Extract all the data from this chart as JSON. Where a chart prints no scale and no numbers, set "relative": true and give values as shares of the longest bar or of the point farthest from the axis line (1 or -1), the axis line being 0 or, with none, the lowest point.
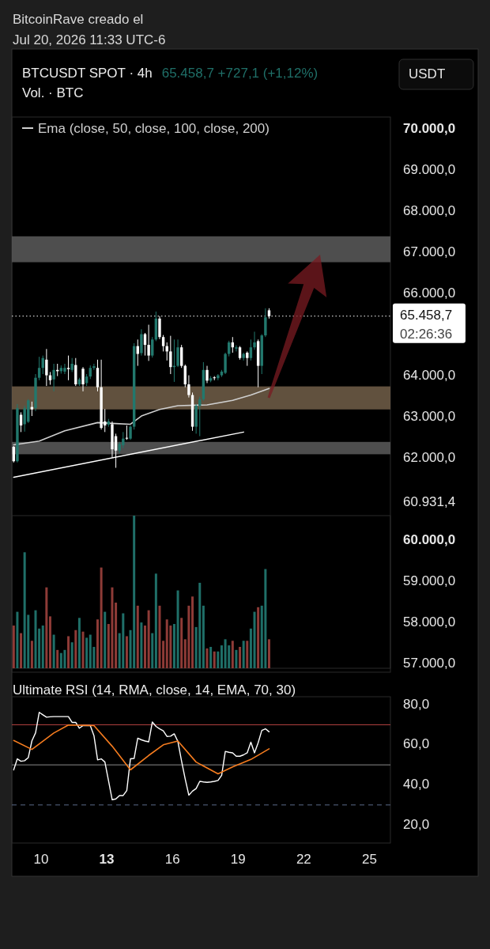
{
  "chart_data": [
    {
      "type": "candlestick",
      "title": "BTCUSDT SPOT · 4h",
      "annotations": [
        "BitcoinRave creado el",
        "Jul 20, 2026 11:33 UTC-6",
        "65.458,7  +727,1 (+1,12%)",
        "USDT",
        "02:26:36"
      ],
      "x": [
        "2026-07-08T18:00",
        "2026-07-08T22:00",
        "2026-07-09T02:00",
        "2026-07-09T06:00",
        "2026-07-09T10:00",
        "2026-07-09T14:00",
        "2026-07-09T18:00",
        "2026-07-09T22:00",
        "2026-07-10T02:00",
        "2026-07-10T06:00",
        "2026-07-10T10:00",
        "2026-07-10T14:00",
        "2026-07-10T18:00",
        "2026-07-10T22:00",
        "2026-07-11T02:00",
        "2026-07-11T06:00",
        "2026-07-11T10:00",
        "2026-07-11T14:00",
        "2026-07-11T18:00",
        "2026-07-11T22:00",
        "2026-07-12T02:00",
        "2026-07-12T06:00",
        "2026-07-12T10:00",
        "2026-07-12T14:00",
        "2026-07-12T18:00",
        "2026-07-12T22:00",
        "2026-07-13T02:00",
        "2026-07-13T06:00",
        "2026-07-13T10:00",
        "2026-07-13T14:00",
        "2026-07-13T18:00",
        "2026-07-13T22:00",
        "2026-07-14T02:00",
        "2026-07-14T06:00",
        "2026-07-14T10:00",
        "2026-07-14T14:00",
        "2026-07-14T18:00",
        "2026-07-14T22:00",
        "2026-07-15T02:00",
        "2026-07-15T06:00",
        "2026-07-15T10:00",
        "2026-07-15T14:00",
        "2026-07-15T18:00",
        "2026-07-15T22:00",
        "2026-07-16T02:00",
        "2026-07-16T06:00",
        "2026-07-16T10:00",
        "2026-07-16T14:00",
        "2026-07-16T18:00",
        "2026-07-16T22:00",
        "2026-07-17T02:00",
        "2026-07-17T06:00",
        "2026-07-17T10:00",
        "2026-07-17T14:00",
        "2026-07-17T18:00",
        "2026-07-17T22:00",
        "2026-07-18T02:00",
        "2026-07-18T06:00",
        "2026-07-18T10:00",
        "2026-07-18T14:00",
        "2026-07-18T18:00",
        "2026-07-18T22:00",
        "2026-07-19T02:00",
        "2026-07-19T06:00",
        "2026-07-19T10:00",
        "2026-07-19T14:00",
        "2026-07-19T18:00",
        "2026-07-19T22:00",
        "2026-07-20T02:00",
        "2026-07-20T06:00",
        "2026-07-20T10:00"
      ],
      "ohlc": [
        [
          62280,
          62300,
          61900,
          61930
        ],
        [
          61930,
          63320,
          61900,
          63220
        ],
        [
          63060,
          63120,
          62640,
          62800
        ],
        [
          62830,
          63280,
          62650,
          63220
        ],
        [
          62890,
          63440,
          62860,
          63410
        ],
        [
          63250,
          63380,
          63030,
          63190
        ],
        [
          63220,
          64050,
          63150,
          63960
        ],
        [
          63960,
          64470,
          63900,
          64200
        ],
        [
          64200,
          64500,
          64050,
          64440
        ],
        [
          64400,
          64660,
          63760,
          64020
        ],
        [
          64020,
          64100,
          63790,
          63900
        ],
        [
          63920,
          64300,
          63630,
          64150
        ],
        [
          64150,
          64300,
          64000,
          64120
        ],
        [
          64120,
          64260,
          64060,
          64200
        ],
        [
          64110,
          64300,
          64050,
          64200
        ],
        [
          64200,
          64500,
          63900,
          64170
        ],
        [
          64150,
          64440,
          64100,
          64300
        ],
        [
          64270,
          64440,
          63760,
          63800
        ],
        [
          63800,
          63960,
          63760,
          63920
        ],
        [
          64180,
          64220,
          63630,
          63800
        ],
        [
          63830,
          64050,
          63760,
          63990
        ],
        [
          63990,
          64260,
          63930,
          64200
        ],
        [
          64200,
          64300,
          64150,
          64240
        ],
        [
          64200,
          64400,
          63630,
          63730
        ],
        [
          63730,
          64400,
          62700,
          62740
        ],
        [
          62900,
          63200,
          62640,
          62800
        ],
        [
          62820,
          62960,
          62770,
          62900
        ],
        [
          62830,
          62900,
          62020,
          62220
        ],
        [
          62540,
          62600,
          61770,
          62190
        ],
        [
          62190,
          62400,
          62130,
          62350
        ],
        [
          62320,
          62640,
          62250,
          62480
        ],
        [
          62500,
          62800,
          62450,
          62480
        ],
        [
          62480,
          62800,
          62450,
          62770
        ],
        [
          62770,
          64800,
          62700,
          64730
        ],
        [
          64730,
          64890,
          64250,
          64540
        ],
        [
          64560,
          65140,
          64500,
          65020
        ],
        [
          65020,
          65050,
          64500,
          64760
        ],
        [
          64760,
          65250,
          64370,
          64500
        ],
        [
          64500,
          64950,
          64450,
          64890
        ],
        [
          64890,
          65570,
          64850,
          65400
        ],
        [
          65400,
          65460,
          64900,
          64950
        ],
        [
          64950,
          65000,
          64600,
          64730
        ],
        [
          64730,
          64820,
          64380,
          64600
        ],
        [
          64600,
          64980,
          64050,
          64220
        ],
        [
          64220,
          64890,
          63860,
          64250
        ],
        [
          64250,
          64890,
          64220,
          64700
        ],
        [
          64700,
          64760,
          64200,
          64250
        ],
        [
          64250,
          64280,
          63730,
          63800
        ],
        [
          63800,
          64020,
          63480,
          63540
        ],
        [
          63540,
          63600,
          62670,
          62770
        ],
        [
          62770,
          63320,
          62600,
          63280
        ],
        [
          63280,
          63500,
          62540,
          63440
        ],
        [
          63440,
          64340,
          63400,
          64150
        ],
        [
          64150,
          64250,
          63830,
          63890
        ],
        [
          63890,
          64000,
          63850,
          63950
        ],
        [
          63970,
          64000,
          63900,
          63950
        ],
        [
          63950,
          64050,
          63900,
          64020
        ],
        [
          64020,
          64150,
          63980,
          64110
        ],
        [
          64080,
          64570,
          64050,
          64540
        ],
        [
          64540,
          64860,
          64480,
          64820
        ],
        [
          64820,
          64950,
          64570,
          64700
        ],
        [
          64670,
          64750,
          64600,
          64700
        ],
        [
          64700,
          64730,
          64400,
          64440
        ],
        [
          64440,
          64570,
          64380,
          64540
        ],
        [
          64570,
          64600,
          64250,
          64440
        ],
        [
          64440,
          64890,
          64380,
          64700
        ],
        [
          64700,
          65080,
          64640,
          64820
        ],
        [
          64850,
          64890,
          63730,
          64250
        ],
        [
          64250,
          65020,
          64050,
          64990
        ],
        [
          64990,
          65650,
          64950,
          65430
        ],
        [
          65600,
          65650,
          65400,
          65458.7
        ]
      ],
      "series": [
        {
          "name": "Ema (close, 50, close, 100, close, 200)",
          "type": "line",
          "color": "#cfcfcf",
          "x": [
            "2026-07-08T18:00",
            "2026-07-09T22:00",
            "2026-07-11T02:00",
            "2026-07-12T14:00",
            "2026-07-13T06:00",
            "2026-07-14T02:00",
            "2026-07-14T14:00",
            "2026-07-15T10:00",
            "2026-07-16T06:00",
            "2026-07-17T14:00",
            "2026-07-18T18:00",
            "2026-07-19T14:00",
            "2026-07-20T10:00"
          ],
          "values": [
            62330,
            62420,
            62670,
            62870,
            62850,
            62830,
            63030,
            63190,
            63280,
            63300,
            63410,
            63540,
            63700
          ]
        },
        {
          "type": "line",
          "color": "#ffffff",
          "x": [
            "2026-07-08T18:00",
            "2026-07-19T06:00"
          ],
          "values": [
            61540,
            62640
          ]
        }
      ],
      "legend": "top left",
      "bands": [
        {
          "axis": "y",
          "from": 66770,
          "to": 67400,
          "color": "#575757"
        },
        {
          "axis": "y",
          "from": 63190,
          "to": 63750,
          "color": "#6b5a45"
        },
        {
          "axis": "y",
          "from": 62100,
          "to": 62400,
          "color": "#575757"
        }
      ],
      "ref_lines": [
        {
          "axis": "y",
          "value": 65458.7,
          "label": "65.458,7",
          "line_style": "dotted",
          "color": "#ffffff"
        }
      ],
      "xlim": [
        "2026-07-08T16:00",
        "2026-07-25T23:00"
      ],
      "ylim": [
        56800,
        70300
      ],
      "yticks": [
        {
          "value": 70000,
          "label": "70.000,0"
        },
        {
          "value": 69000,
          "label": "69.000,0"
        },
        {
          "value": 68000,
          "label": "68.000,0"
        },
        {
          "value": 67000,
          "label": "67.000,0"
        },
        {
          "value": 66000,
          "label": "66.000,0"
        },
        {
          "value": 64000,
          "label": "64.000,0"
        },
        {
          "value": 63000,
          "label": "63.000,0"
        },
        {
          "value": 62000,
          "label": "62.000,0"
        },
        {
          "value": 60931.4,
          "label": "60.931,4"
        },
        {
          "value": 60000,
          "label": "60.000,0"
        },
        {
          "value": 59000,
          "label": "59.000,0"
        },
        {
          "value": 58000,
          "label": "58.000,0"
        },
        {
          "value": 57000,
          "label": "57.000,0"
        }
      ],
      "tick_labels": "y"
    },
    {
      "type": "bar",
      "title": "Vol. · BTC",
      "relative": true,
      "tick_labels": false,
      "x": [
        "2026-07-08T18:00",
        "2026-07-08T22:00",
        "2026-07-09T02:00",
        "2026-07-09T06:00",
        "2026-07-09T10:00",
        "2026-07-09T14:00",
        "2026-07-09T18:00",
        "2026-07-09T22:00",
        "2026-07-10T02:00",
        "2026-07-10T06:00",
        "2026-07-10T10:00",
        "2026-07-10T14:00",
        "2026-07-10T18:00",
        "2026-07-10T22:00",
        "2026-07-11T02:00",
        "2026-07-11T06:00",
        "2026-07-11T10:00",
        "2026-07-11T14:00",
        "2026-07-11T18:00",
        "2026-07-11T22:00",
        "2026-07-12T02:00",
        "2026-07-12T06:00",
        "2026-07-12T10:00",
        "2026-07-12T14:00",
        "2026-07-12T18:00",
        "2026-07-12T22:00",
        "2026-07-13T02:00",
        "2026-07-13T06:00",
        "2026-07-13T10:00",
        "2026-07-13T14:00",
        "2026-07-13T18:00",
        "2026-07-13T22:00",
        "2026-07-14T02:00",
        "2026-07-14T06:00",
        "2026-07-14T10:00",
        "2026-07-14T14:00",
        "2026-07-14T18:00",
        "2026-07-14T22:00",
        "2026-07-15T02:00",
        "2026-07-15T06:00",
        "2026-07-15T10:00",
        "2026-07-15T14:00",
        "2026-07-15T18:00",
        "2026-07-15T22:00",
        "2026-07-16T02:00",
        "2026-07-16T06:00",
        "2026-07-16T10:00",
        "2026-07-16T14:00",
        "2026-07-16T18:00",
        "2026-07-16T22:00",
        "2026-07-17T02:00",
        "2026-07-17T06:00",
        "2026-07-17T10:00",
        "2026-07-17T14:00",
        "2026-07-17T18:00",
        "2026-07-17T22:00",
        "2026-07-18T02:00",
        "2026-07-18T06:00",
        "2026-07-18T10:00",
        "2026-07-18T14:00",
        "2026-07-18T18:00",
        "2026-07-18T22:00",
        "2026-07-19T02:00",
        "2026-07-19T06:00",
        "2026-07-19T10:00",
        "2026-07-19T14:00",
        "2026-07-19T18:00",
        "2026-07-19T22:00",
        "2026-07-20T02:00",
        "2026-07-20T06:00",
        "2026-07-20T10:00"
      ],
      "values": [
        0.28,
        0.37,
        0.23,
        0.76,
        0.35,
        0.18,
        0.38,
        0.26,
        0.28,
        0.53,
        0.34,
        0.22,
        0.12,
        0.1,
        0.12,
        0.21,
        0.17,
        0.25,
        0.33,
        0.24,
        0.2,
        0.22,
        0.14,
        0.32,
        0.66,
        0.37,
        0.29,
        0.53,
        0.43,
        0.23,
        0.36,
        0.21,
        0.25,
        1,
        0.41,
        0.3,
        0.28,
        0.38,
        0.23,
        0.62,
        0.41,
        0.18,
        0.32,
        0.28,
        0.29,
        0.51,
        0.33,
        0.19,
        0.41,
        0.47,
        0.27,
        0.56,
        0.41,
        0.13,
        0.14,
        0.11,
        0.11,
        0.15,
        0.19,
        0.15,
        0.18,
        0.12,
        0.14,
        0.18,
        0.18,
        0.26,
        0.37,
        0.4,
        0.41,
        0.65,
        0.19
      ],
      "colors": [
        "#8e3b37",
        "#1f6f68",
        "#8e3b37",
        "#1f6f68",
        "#1f6f68",
        "#8e3b37",
        "#1f6f68",
        "#1f6f68",
        "#1f6f68",
        "#8e3b37",
        "#8e3b37",
        "#1f6f68",
        "#8e3b37",
        "#1f6f68",
        "#1f6f68",
        "#8e3b37",
        "#1f6f68",
        "#8e3b37",
        "#1f6f68",
        "#8e3b37",
        "#1f6f68",
        "#1f6f68",
        "#1f6f68",
        "#8e3b37",
        "#8e3b37",
        "#1f6f68",
        "#8e3b37",
        "#8e3b37",
        "#8e3b37",
        "#1f6f68",
        "#1f6f68",
        "#8e3b37",
        "#1f6f68",
        "#1f6f68",
        "#8e3b37",
        "#1f6f68",
        "#8e3b37",
        "#8e3b37",
        "#1f6f68",
        "#1f6f68",
        "#8e3b37",
        "#8e3b37",
        "#8e3b37",
        "#8e3b37",
        "#1f6f68",
        "#1f6f68",
        "#8e3b37",
        "#8e3b37",
        "#8e3b37",
        "#8e3b37",
        "#1f6f68",
        "#1f6f68",
        "#1f6f68",
        "#8e3b37",
        "#1f6f68",
        "#8e3b37",
        "#1f6f68",
        "#1f6f68",
        "#1f6f68",
        "#1f6f68",
        "#8e3b37",
        "#1f6f68",
        "#8e3b37",
        "#1f6f68",
        "#8e3b37",
        "#1f6f68",
        "#1f6f68",
        "#8e3b37",
        "#1f6f68",
        "#1f6f68",
        "#8e3b37"
      ],
      "xlim": [
        "2026-07-08T16:00",
        "2026-07-25T23:00"
      ]
    },
    {
      "type": "line",
      "title": "Ultimate RSI (14, RMA, close, 14, EMA, 70, 30)",
      "x": [
        "2026-07-08T18:00",
        "2026-07-08T22:00",
        "2026-07-09T02:00",
        "2026-07-09T06:00",
        "2026-07-09T10:00",
        "2026-07-09T14:00",
        "2026-07-09T18:00",
        "2026-07-09T22:00",
        "2026-07-10T02:00",
        "2026-07-10T06:00",
        "2026-07-10T10:00",
        "2026-07-10T14:00",
        "2026-07-10T18:00",
        "2026-07-10T22:00",
        "2026-07-11T02:00",
        "2026-07-11T06:00",
        "2026-07-11T10:00",
        "2026-07-11T14:00",
        "2026-07-11T18:00",
        "2026-07-11T22:00",
        "2026-07-12T02:00",
        "2026-07-12T06:00",
        "2026-07-12T10:00",
        "2026-07-12T14:00",
        "2026-07-12T18:00",
        "2026-07-12T22:00",
        "2026-07-13T02:00",
        "2026-07-13T06:00",
        "2026-07-13T10:00",
        "2026-07-13T14:00",
        "2026-07-13T18:00",
        "2026-07-13T22:00",
        "2026-07-14T02:00",
        "2026-07-14T06:00",
        "2026-07-14T10:00",
        "2026-07-14T14:00",
        "2026-07-14T18:00",
        "2026-07-14T22:00",
        "2026-07-15T02:00",
        "2026-07-15T06:00",
        "2026-07-15T10:00",
        "2026-07-15T14:00",
        "2026-07-15T18:00",
        "2026-07-15T22:00",
        "2026-07-16T02:00",
        "2026-07-16T06:00",
        "2026-07-16T10:00",
        "2026-07-16T14:00",
        "2026-07-16T18:00",
        "2026-07-16T22:00",
        "2026-07-17T02:00",
        "2026-07-17T06:00",
        "2026-07-17T10:00",
        "2026-07-17T14:00",
        "2026-07-17T18:00",
        "2026-07-17T22:00",
        "2026-07-18T02:00",
        "2026-07-18T06:00",
        "2026-07-18T10:00",
        "2026-07-18T14:00",
        "2026-07-18T18:00",
        "2026-07-18T22:00",
        "2026-07-19T02:00",
        "2026-07-19T06:00",
        "2026-07-19T10:00",
        "2026-07-19T14:00",
        "2026-07-19T18:00",
        "2026-07-19T22:00",
        "2026-07-20T02:00",
        "2026-07-20T06:00",
        "2026-07-20T10:00"
      ],
      "series": [
        {
          "color": "#ffffff",
          "values": [
            47.5,
            53,
            51.8,
            52.1,
            53.6,
            62,
            66,
            76.2,
            75,
            73.8,
            74,
            74.1,
            74.1,
            74.1,
            74.1,
            74.1,
            71.2,
            71.2,
            68.3,
            69.6,
            69.6,
            69.6,
            64.6,
            52.5,
            53,
            51.4,
            42,
            32.6,
            33,
            34.7,
            34.7,
            37.2,
            53,
            53.2,
            63.3,
            62.5,
            61.9,
            61.5,
            71.4,
            69.2,
            68,
            67,
            64.2,
            64.3,
            65.5,
            61.7,
            52,
            43,
            34.9,
            36.9,
            38.2,
            41.8,
            41.5,
            41.3,
            41.5,
            41.8,
            42.2,
            44.8,
            56.7,
            56.3,
            56,
            54.3,
            54.3,
            55,
            56,
            61.3,
            56,
            61,
            67.2,
            68,
            66.5
          ]
        },
        {
          "color": "#f57c1f",
          "x": [
            "2026-07-08T18:00",
            "2026-07-09T14:00",
            "2026-07-10T14:00",
            "2026-07-11T06:00",
            "2026-07-12T10:00",
            "2026-07-13T06:00",
            "2026-07-14T02:00",
            "2026-07-14T22:00",
            "2026-07-15T14:00",
            "2026-07-16T06:00",
            "2026-07-17T02:00",
            "2026-07-18T02:00",
            "2026-07-18T18:00",
            "2026-07-19T14:00",
            "2026-07-20T10:00"
          ],
          "values": [
            62.2,
            57.7,
            65.9,
            69.9,
            69.6,
            59.3,
            47.5,
            54.7,
            60,
            61.9,
            51.4,
            45.5,
            49,
            52.7,
            58
          ]
        }
      ],
      "ref_lines": [
        {
          "axis": "y",
          "value": 70,
          "color": "#b2403f",
          "line_style": "solid"
        },
        {
          "axis": "y",
          "value": 50,
          "color": "#8a8a8a",
          "line_style": "solid"
        },
        {
          "axis": "y",
          "value": 30,
          "color": "#5b6a8a",
          "line_style": "dashed"
        }
      ],
      "xlim": [
        "2026-07-08T16:00",
        "2026-07-25T23:00"
      ],
      "xticks": [
        {
          "value": "2026-07-10",
          "label": "10"
        },
        {
          "value": "2026-07-13",
          "label": "13"
        },
        {
          "value": "2026-07-16",
          "label": "16"
        },
        {
          "value": "2026-07-19",
          "label": "19"
        },
        {
          "value": "2026-07-22",
          "label": "22"
        },
        {
          "value": "2026-07-25",
          "label": "25"
        }
      ],
      "ylim": [
        11,
        84
      ],
      "yticks": [
        {
          "value": 20,
          "label": "20,0"
        },
        {
          "value": 40,
          "label": "40,0"
        },
        {
          "value": 60,
          "label": "60,0"
        },
        {
          "value": 80,
          "label": "80,0"
        }
      ]
    }
  ]
}
